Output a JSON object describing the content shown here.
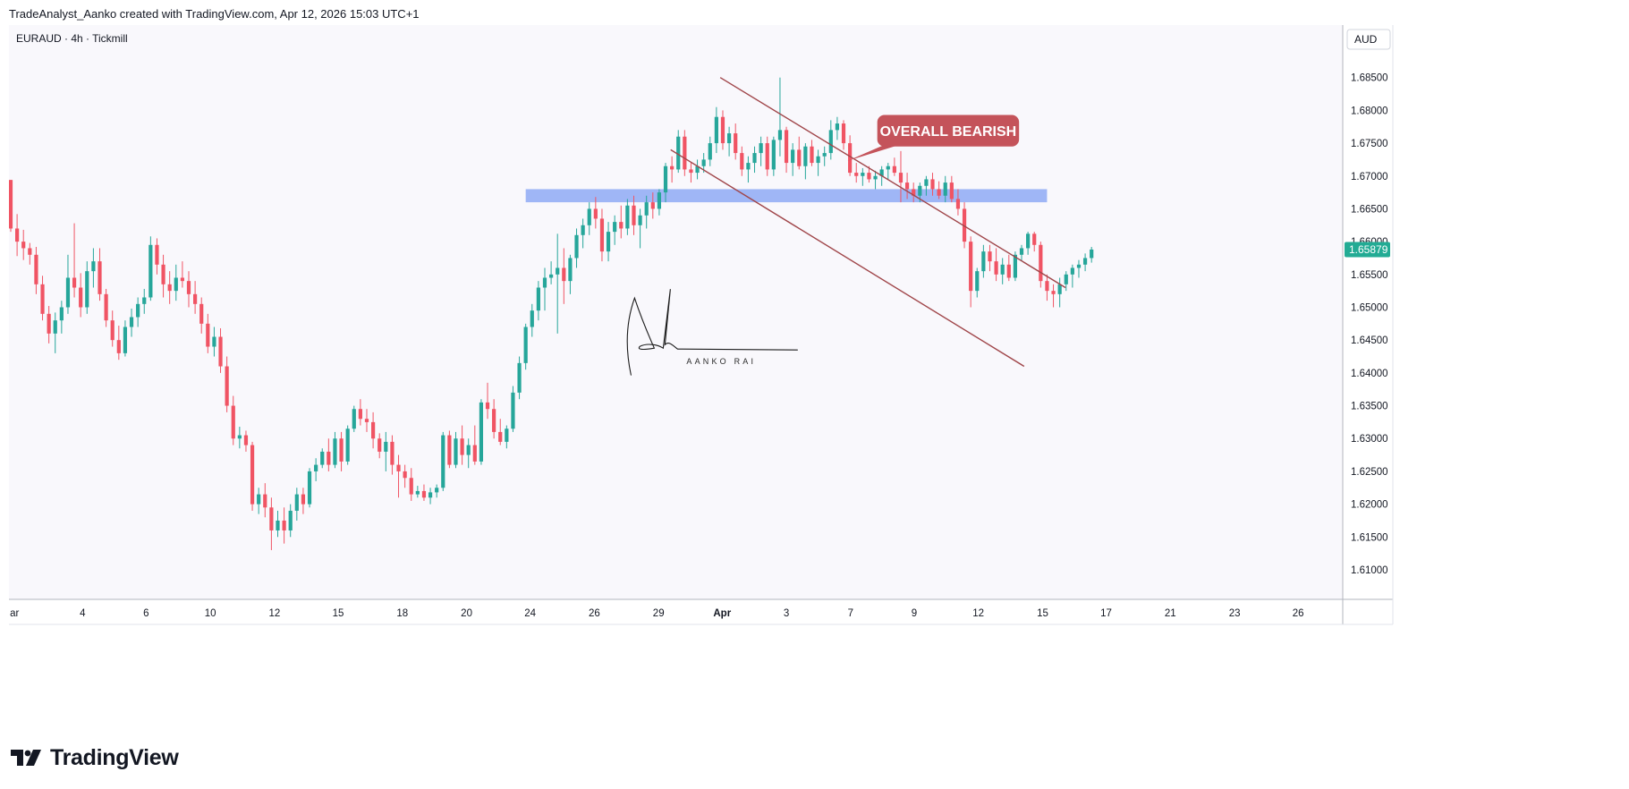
{
  "header": {
    "attribution": "TradeAnalyst_Aanko created with TradingView.com, Apr 12, 2026 15:03 UTC+1"
  },
  "chart_data": {
    "type": "candlestick",
    "symbol_label": "EURAUD · 4h · Tickmill",
    "currency": "AUD",
    "last_price": "1.65879",
    "colors": {
      "up": "#26a69a",
      "down": "#f05464",
      "background": "#f9f8fc",
      "axis_text": "#131722",
      "grid": "none",
      "channel": "#a0464a",
      "zone": "#8faaf5",
      "callout": "#c4535a",
      "price_badge": "#22ab94"
    },
    "y_axis": {
      "range": [
        1.6055,
        1.693
      ],
      "ticks": [
        "1.68500",
        "1.68000",
        "1.67500",
        "1.67000",
        "1.66500",
        "1.66000",
        "1.65500",
        "1.65000",
        "1.64500",
        "1.64000",
        "1.63500",
        "1.63000",
        "1.62500",
        "1.62000",
        "1.61500",
        "1.61000"
      ],
      "tick_values": [
        1.685,
        1.68,
        1.675,
        1.67,
        1.665,
        1.66,
        1.655,
        1.65,
        1.645,
        1.64,
        1.635,
        1.63,
        1.625,
        1.62,
        1.615,
        1.61
      ]
    },
    "x_axis": {
      "ticks": [
        {
          "label": "ar",
          "t": 0.6
        },
        {
          "label": "4",
          "t": 11.3
        },
        {
          "label": "6",
          "t": 21.3
        },
        {
          "label": "10",
          "t": 31.4
        },
        {
          "label": "12",
          "t": 41.5
        },
        {
          "label": "15",
          "t": 51.5
        },
        {
          "label": "18",
          "t": 61.6
        },
        {
          "label": "20",
          "t": 71.7
        },
        {
          "label": "24",
          "t": 81.7
        },
        {
          "label": "26",
          "t": 91.8
        },
        {
          "label": "29",
          "t": 101.9
        },
        {
          "label": "Apr",
          "t": 111.9
        },
        {
          "label": "3",
          "t": 122.0
        },
        {
          "label": "7",
          "t": 132.1
        },
        {
          "label": "9",
          "t": 142.1
        },
        {
          "label": "12",
          "t": 152.2
        },
        {
          "label": "15",
          "t": 162.3
        },
        {
          "label": "17",
          "t": 172.3
        },
        {
          "label": "21",
          "t": 182.4
        },
        {
          "label": "23",
          "t": 192.5
        },
        {
          "label": "26",
          "t": 202.5
        }
      ],
      "range": [
        0,
        209
      ]
    },
    "candles": [
      [
        1.6694,
        1.6694,
        1.6615,
        1.662
      ],
      [
        1.662,
        1.6642,
        1.6578,
        1.66
      ],
      [
        1.66,
        1.6618,
        1.6572,
        1.659
      ],
      [
        1.659,
        1.6598,
        1.6565,
        1.658
      ],
      [
        1.658,
        1.6592,
        1.652,
        1.6535
      ],
      [
        1.6535,
        1.6548,
        1.648,
        1.649
      ],
      [
        1.649,
        1.6502,
        1.6445,
        1.646
      ],
      [
        1.646,
        1.6492,
        1.643,
        1.648
      ],
      [
        1.648,
        1.651,
        1.646,
        1.65
      ],
      [
        1.65,
        1.658,
        1.649,
        1.6545
      ],
      [
        1.6545,
        1.6628,
        1.6515,
        1.653
      ],
      [
        1.653,
        1.6552,
        1.6485,
        1.65
      ],
      [
        1.65,
        1.657,
        1.649,
        1.6555
      ],
      [
        1.6555,
        1.659,
        1.653,
        1.657
      ],
      [
        1.657,
        1.659,
        1.651,
        1.652
      ],
      [
        1.652,
        1.6528,
        1.647,
        1.648
      ],
      [
        1.648,
        1.6495,
        1.644,
        1.645
      ],
      [
        1.645,
        1.6472,
        1.642,
        1.643
      ],
      [
        1.643,
        1.648,
        1.6425,
        1.647
      ],
      [
        1.647,
        1.6498,
        1.6455,
        1.6485
      ],
      [
        1.6485,
        1.6515,
        1.647,
        1.6505
      ],
      [
        1.6505,
        1.6528,
        1.649,
        1.6515
      ],
      [
        1.6515,
        1.6608,
        1.651,
        1.6595
      ],
      [
        1.6595,
        1.6605,
        1.655,
        1.6565
      ],
      [
        1.6565,
        1.658,
        1.6515,
        1.6535
      ],
      [
        1.6535,
        1.6555,
        1.6505,
        1.6525
      ],
      [
        1.6525,
        1.6565,
        1.651,
        1.6545
      ],
      [
        1.6545,
        1.657,
        1.653,
        1.654
      ],
      [
        1.654,
        1.6555,
        1.65,
        1.652
      ],
      [
        1.652,
        1.654,
        1.649,
        1.6505
      ],
      [
        1.6505,
        1.6515,
        1.646,
        1.6475
      ],
      [
        1.6475,
        1.649,
        1.643,
        1.644
      ],
      [
        1.644,
        1.647,
        1.6425,
        1.6455
      ],
      [
        1.6455,
        1.6468,
        1.64,
        1.641
      ],
      [
        1.641,
        1.6425,
        1.634,
        1.635
      ],
      [
        1.635,
        1.6365,
        1.629,
        1.63
      ],
      [
        1.63,
        1.6318,
        1.6285,
        1.6305
      ],
      [
        1.6305,
        1.6312,
        1.628,
        1.629
      ],
      [
        1.629,
        1.6295,
        1.619,
        1.62
      ],
      [
        1.62,
        1.6225,
        1.6185,
        1.6215
      ],
      [
        1.6215,
        1.6232,
        1.618,
        1.6195
      ],
      [
        1.6195,
        1.621,
        1.613,
        1.616
      ],
      [
        1.616,
        1.619,
        1.615,
        1.6175
      ],
      [
        1.6175,
        1.6195,
        1.614,
        1.616
      ],
      [
        1.616,
        1.62,
        1.615,
        1.619
      ],
      [
        1.619,
        1.6225,
        1.6175,
        1.6215
      ],
      [
        1.6215,
        1.6225,
        1.6185,
        1.62
      ],
      [
        1.62,
        1.6255,
        1.6195,
        1.625
      ],
      [
        1.625,
        1.627,
        1.6235,
        1.626
      ],
      [
        1.626,
        1.6285,
        1.6255,
        1.628
      ],
      [
        1.628,
        1.63,
        1.625,
        1.626
      ],
      [
        1.626,
        1.631,
        1.6255,
        1.63
      ],
      [
        1.63,
        1.631,
        1.625,
        1.6265
      ],
      [
        1.6265,
        1.632,
        1.626,
        1.6315
      ],
      [
        1.6315,
        1.635,
        1.631,
        1.6345
      ],
      [
        1.6345,
        1.636,
        1.632,
        1.633
      ],
      [
        1.633,
        1.6345,
        1.631,
        1.6325
      ],
      [
        1.6325,
        1.634,
        1.6285,
        1.63
      ],
      [
        1.63,
        1.6308,
        1.627,
        1.628
      ],
      [
        1.628,
        1.631,
        1.625,
        1.6295
      ],
      [
        1.6295,
        1.6305,
        1.6245,
        1.626
      ],
      [
        1.626,
        1.6275,
        1.621,
        1.625
      ],
      [
        1.625,
        1.626,
        1.6225,
        1.624
      ],
      [
        1.624,
        1.6255,
        1.6205,
        1.6215
      ],
      [
        1.6215,
        1.6228,
        1.621,
        1.622
      ],
      [
        1.622,
        1.623,
        1.6205,
        1.621
      ],
      [
        1.621,
        1.6225,
        1.62,
        1.6218
      ],
      [
        1.6218,
        1.623,
        1.621,
        1.6225
      ],
      [
        1.6225,
        1.631,
        1.622,
        1.6305
      ],
      [
        1.6305,
        1.6312,
        1.6255,
        1.626
      ],
      [
        1.626,
        1.631,
        1.6255,
        1.63
      ],
      [
        1.63,
        1.632,
        1.626,
        1.6275
      ],
      [
        1.6275,
        1.63,
        1.6255,
        1.629
      ],
      [
        1.629,
        1.632,
        1.626,
        1.6265
      ],
      [
        1.6265,
        1.636,
        1.626,
        1.6355
      ],
      [
        1.6355,
        1.6385,
        1.633,
        1.6345
      ],
      [
        1.6345,
        1.636,
        1.63,
        1.631
      ],
      [
        1.631,
        1.633,
        1.629,
        1.6295
      ],
      [
        1.6295,
        1.632,
        1.6285,
        1.6315
      ],
      [
        1.6315,
        1.638,
        1.631,
        1.637
      ],
      [
        1.637,
        1.6425,
        1.636,
        1.6415
      ],
      [
        1.6415,
        1.6475,
        1.6405,
        1.647
      ],
      [
        1.647,
        1.6505,
        1.6455,
        1.6495
      ],
      [
        1.6495,
        1.654,
        1.648,
        1.653
      ],
      [
        1.653,
        1.656,
        1.6495,
        1.6545
      ],
      [
        1.6545,
        1.657,
        1.6535,
        1.655
      ],
      [
        1.655,
        1.6612,
        1.646,
        1.656
      ],
      [
        1.656,
        1.659,
        1.6505,
        1.654
      ],
      [
        1.654,
        1.658,
        1.652,
        1.6575
      ],
      [
        1.6575,
        1.662,
        1.656,
        1.661
      ],
      [
        1.661,
        1.6635,
        1.659,
        1.6625
      ],
      [
        1.6625,
        1.666,
        1.661,
        1.665
      ],
      [
        1.665,
        1.6668,
        1.662,
        1.6635
      ],
      [
        1.6635,
        1.665,
        1.657,
        1.6585
      ],
      [
        1.6585,
        1.663,
        1.657,
        1.6615
      ],
      [
        1.6615,
        1.664,
        1.6595,
        1.663
      ],
      [
        1.663,
        1.6655,
        1.6605,
        1.662
      ],
      [
        1.662,
        1.6665,
        1.661,
        1.6655
      ],
      [
        1.6655,
        1.667,
        1.661,
        1.6625
      ],
      [
        1.6625,
        1.665,
        1.659,
        1.664
      ],
      [
        1.664,
        1.667,
        1.662,
        1.666
      ],
      [
        1.666,
        1.6675,
        1.6635,
        1.665
      ],
      [
        1.665,
        1.668,
        1.664,
        1.6675
      ],
      [
        1.6675,
        1.672,
        1.666,
        1.6715
      ],
      [
        1.6715,
        1.673,
        1.669,
        1.671
      ],
      [
        1.671,
        1.677,
        1.6705,
        1.676
      ],
      [
        1.676,
        1.677,
        1.67,
        1.671
      ],
      [
        1.671,
        1.672,
        1.669,
        1.6705
      ],
      [
        1.6705,
        1.6725,
        1.6695,
        1.6715
      ],
      [
        1.6715,
        1.6735,
        1.6705,
        1.6725
      ],
      [
        1.6725,
        1.676,
        1.6715,
        1.675
      ],
      [
        1.675,
        1.6805,
        1.6735,
        1.679
      ],
      [
        1.679,
        1.68,
        1.674,
        1.675
      ],
      [
        1.675,
        1.6775,
        1.673,
        1.6765
      ],
      [
        1.6765,
        1.678,
        1.6725,
        1.6735
      ],
      [
        1.6735,
        1.6745,
        1.67,
        1.671
      ],
      [
        1.671,
        1.673,
        1.669,
        1.672
      ],
      [
        1.672,
        1.6745,
        1.6705,
        1.6735
      ],
      [
        1.6735,
        1.676,
        1.6715,
        1.675
      ],
      [
        1.675,
        1.676,
        1.67,
        1.671
      ],
      [
        1.671,
        1.676,
        1.67,
        1.6755
      ],
      [
        1.6755,
        1.685,
        1.673,
        1.677
      ],
      [
        1.677,
        1.6775,
        1.6705,
        1.672
      ],
      [
        1.672,
        1.675,
        1.67,
        1.674
      ],
      [
        1.674,
        1.676,
        1.671,
        1.6715
      ],
      [
        1.6715,
        1.675,
        1.6695,
        1.6745
      ],
      [
        1.6745,
        1.6755,
        1.6715,
        1.672
      ],
      [
        1.672,
        1.674,
        1.67,
        1.673
      ],
      [
        1.673,
        1.6745,
        1.6715,
        1.6735
      ],
      [
        1.6735,
        1.6785,
        1.6725,
        1.677
      ],
      [
        1.677,
        1.679,
        1.6755,
        1.678
      ],
      [
        1.678,
        1.6785,
        1.674,
        1.675
      ],
      [
        1.675,
        1.6762,
        1.67,
        1.6705
      ],
      [
        1.6705,
        1.672,
        1.669,
        1.67
      ],
      [
        1.67,
        1.6712,
        1.6685,
        1.6705
      ],
      [
        1.6705,
        1.6715,
        1.669,
        1.6695
      ],
      [
        1.6695,
        1.6708,
        1.668,
        1.67
      ],
      [
        1.67,
        1.6715,
        1.6685,
        1.671
      ],
      [
        1.671,
        1.672,
        1.6695,
        1.6715
      ],
      [
        1.6715,
        1.6728,
        1.67,
        1.6705
      ],
      [
        1.6705,
        1.6738,
        1.666,
        1.669
      ],
      [
        1.669,
        1.6705,
        1.6665,
        1.668
      ],
      [
        1.668,
        1.669,
        1.666,
        1.667
      ],
      [
        1.667,
        1.669,
        1.666,
        1.6685
      ],
      [
        1.6685,
        1.67,
        1.667,
        1.6695
      ],
      [
        1.6695,
        1.6705,
        1.667,
        1.668
      ],
      [
        1.668,
        1.6692,
        1.6665,
        1.667
      ],
      [
        1.667,
        1.67,
        1.666,
        1.669
      ],
      [
        1.669,
        1.67,
        1.666,
        1.6665
      ],
      [
        1.6665,
        1.668,
        1.664,
        1.665
      ],
      [
        1.665,
        1.666,
        1.659,
        1.66
      ],
      [
        1.66,
        1.6608,
        1.65,
        1.6525
      ],
      [
        1.6525,
        1.656,
        1.6515,
        1.6555
      ],
      [
        1.6555,
        1.6595,
        1.6545,
        1.6585
      ],
      [
        1.6585,
        1.6595,
        1.6555,
        1.657
      ],
      [
        1.657,
        1.659,
        1.654,
        1.655
      ],
      [
        1.655,
        1.6575,
        1.6535,
        1.6565
      ],
      [
        1.6565,
        1.658,
        1.654,
        1.6545
      ],
      [
        1.6545,
        1.6585,
        1.654,
        1.658
      ],
      [
        1.658,
        1.6595,
        1.657,
        1.659
      ],
      [
        1.659,
        1.6615,
        1.658,
        1.6612
      ],
      [
        1.6612,
        1.6615,
        1.6585,
        1.6595
      ],
      [
        1.6595,
        1.66,
        1.653,
        1.654
      ],
      [
        1.654,
        1.655,
        1.651,
        1.6525
      ],
      [
        1.6525,
        1.6535,
        1.65,
        1.652
      ],
      [
        1.652,
        1.6545,
        1.65,
        1.6535
      ],
      [
        1.6535,
        1.6555,
        1.6525,
        1.655
      ],
      [
        1.655,
        1.6565,
        1.653,
        1.656
      ],
      [
        1.656,
        1.6572,
        1.6545,
        1.6565
      ],
      [
        1.6565,
        1.6582,
        1.6555,
        1.6575
      ],
      [
        1.6575,
        1.6592,
        1.6568,
        1.6588
      ]
    ],
    "annotations": {
      "zone": {
        "from_t": 81.0,
        "to_t": 163.0,
        "low": 1.666,
        "high": 1.668
      },
      "channel_upper": {
        "t1": 111.6,
        "p1": 1.685,
        "t2": 165.9,
        "p2": 1.653
      },
      "channel_lower": {
        "t1": 103.8,
        "p1": 1.674,
        "t2": 159.4,
        "p2": 1.641
      },
      "callout_text": "OVERALL BEARISH",
      "callout_anchor": {
        "t": 131.6,
        "p": 1.6723
      },
      "callout_box": {
        "t_left": 136.3,
        "t_right": 158.6,
        "p_top": 1.6793,
        "p_bottom": 1.6745
      },
      "signature_name": "AANKO RAI",
      "signature_anchor": {
        "t": 97.0,
        "p": 1.6435
      }
    }
  }
}
